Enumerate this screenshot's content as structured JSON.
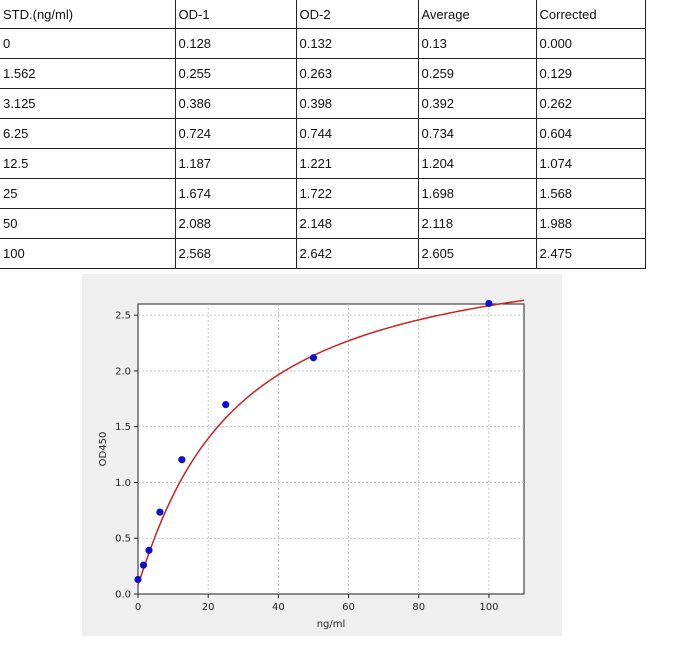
{
  "table": {
    "headers": [
      "STD.(ng/ml)",
      "OD-1",
      "OD-2",
      "Average",
      "Corrected"
    ],
    "rows": [
      [
        "0",
        "0.128",
        "0.132",
        "0.13",
        "0.000"
      ],
      [
        "1.562",
        "0.255",
        "0.263",
        "0.259",
        "0.129"
      ],
      [
        "3.125",
        "0.386",
        "0.398",
        "0.392",
        "0.262"
      ],
      [
        "6.25",
        "0.724",
        "0.744",
        "0.734",
        "0.604"
      ],
      [
        "12.5",
        "1.187",
        "1.221",
        "1.204",
        "1.074"
      ],
      [
        "25",
        "1.674",
        "1.722",
        "1.698",
        "1.568"
      ],
      [
        "50",
        "2.088",
        "2.148",
        "2.118",
        "1.988"
      ],
      [
        "100",
        "2.568",
        "2.642",
        "2.605",
        "2.475"
      ]
    ]
  },
  "chart_data": {
    "type": "scatter",
    "xlabel": "ng/ml",
    "ylabel": "OD450",
    "xlim": [
      0,
      110
    ],
    "ylim": [
      0,
      2.6
    ],
    "xticks": [
      0,
      20,
      40,
      60,
      80,
      100
    ],
    "yticks": [
      0.0,
      0.5,
      1.0,
      1.5,
      2.0,
      2.5
    ],
    "ytick_labels": [
      "0.0",
      "0.5",
      "1.0",
      "1.5",
      "2.0",
      "2.5"
    ],
    "grid": true,
    "points": {
      "x": [
        0,
        1.562,
        3.125,
        6.25,
        12.5,
        25,
        50,
        100
      ],
      "y": [
        0.13,
        0.259,
        0.392,
        0.734,
        1.204,
        1.698,
        2.118,
        2.605
      ],
      "color": "#1010cc"
    },
    "fit_curve": {
      "type": "4PL",
      "color": "#cc2222"
    }
  }
}
